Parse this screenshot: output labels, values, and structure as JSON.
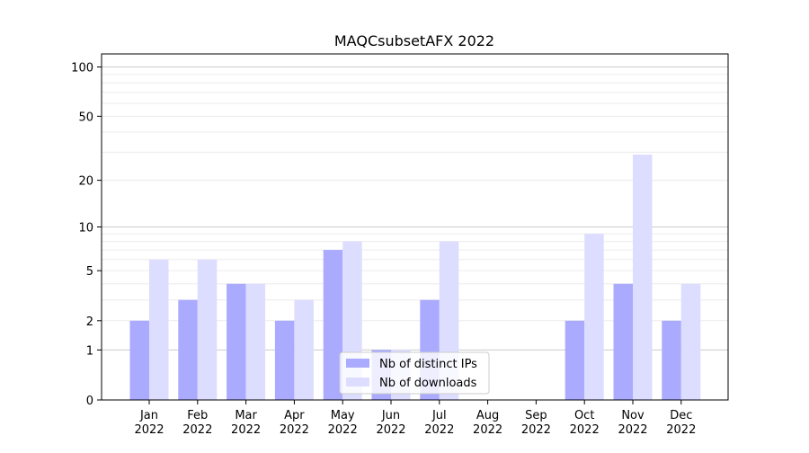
{
  "chart_data": {
    "type": "bar",
    "title": "MAQCsubsetAFX 2022",
    "categories": [
      "Jan\n2022",
      "Feb\n2022",
      "Mar\n2022",
      "Apr\n2022",
      "May\n2022",
      "Jun\n2022",
      "Jul\n2022",
      "Aug\n2022",
      "Sep\n2022",
      "Oct\n2022",
      "Nov\n2022",
      "Dec\n2022"
    ],
    "series": [
      {
        "name": "Nb of distinct IPs",
        "color": "#aaaaff",
        "values": [
          2,
          3,
          4,
          2,
          7,
          1,
          3,
          0,
          0,
          2,
          4,
          2
        ]
      },
      {
        "name": "Nb of downloads",
        "color": "#ddddff",
        "values": [
          6,
          6,
          4,
          3,
          8,
          1,
          8,
          0,
          0,
          9,
          29,
          4
        ]
      }
    ],
    "yscale": "log(1+y)",
    "ylim": [
      0,
      120
    ],
    "yticks": [
      {
        "value": 0,
        "label": "0"
      },
      {
        "value": 1,
        "label": "1"
      },
      {
        "value": 2,
        "label": "2"
      },
      {
        "value": 5,
        "label": "5"
      },
      {
        "value": 10,
        "label": "10"
      },
      {
        "value": 20,
        "label": "20"
      },
      {
        "value": 50,
        "label": "50"
      },
      {
        "value": 100,
        "label": "100"
      }
    ],
    "xlabel": "",
    "ylabel": "",
    "legend_position": "bottom-center",
    "grid": true
  }
}
